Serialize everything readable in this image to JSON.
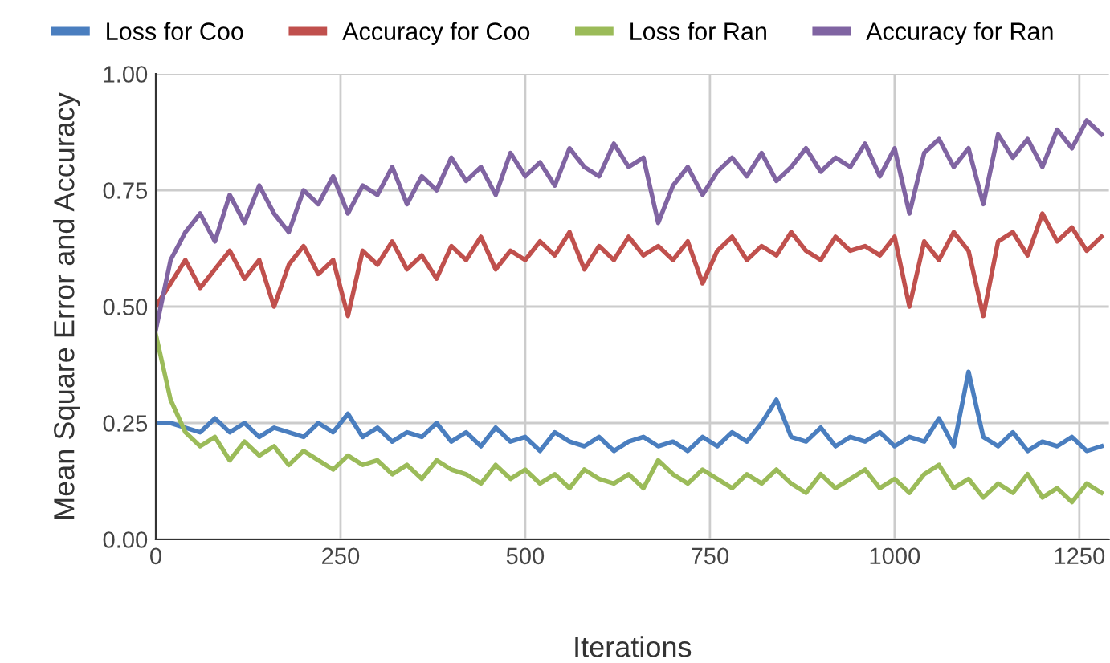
{
  "chart_data": {
    "type": "line",
    "xlabel": "Iterations",
    "ylabel": "Mean Square Error and Accuracy",
    "x": [
      0,
      20,
      40,
      60,
      80,
      100,
      120,
      140,
      160,
      180,
      200,
      220,
      240,
      260,
      280,
      300,
      320,
      340,
      360,
      380,
      400,
      420,
      440,
      460,
      480,
      500,
      520,
      540,
      560,
      580,
      600,
      620,
      640,
      660,
      680,
      700,
      720,
      740,
      760,
      780,
      800,
      820,
      840,
      860,
      880,
      900,
      920,
      940,
      960,
      980,
      1000,
      1020,
      1040,
      1060,
      1080,
      1100,
      1120,
      1140,
      1160,
      1180,
      1200,
      1220,
      1240,
      1260,
      1280
    ],
    "series": [
      {
        "name": "Loss for Coo",
        "color": "#4a7ebf",
        "values": [
          0.25,
          0.25,
          0.24,
          0.23,
          0.26,
          0.23,
          0.25,
          0.22,
          0.24,
          0.23,
          0.22,
          0.25,
          0.23,
          0.27,
          0.22,
          0.24,
          0.21,
          0.23,
          0.22,
          0.25,
          0.21,
          0.23,
          0.2,
          0.24,
          0.21,
          0.22,
          0.19,
          0.23,
          0.21,
          0.2,
          0.22,
          0.19,
          0.21,
          0.22,
          0.2,
          0.21,
          0.19,
          0.22,
          0.2,
          0.23,
          0.21,
          0.25,
          0.3,
          0.22,
          0.21,
          0.24,
          0.2,
          0.22,
          0.21,
          0.23,
          0.2,
          0.22,
          0.21,
          0.26,
          0.2,
          0.36,
          0.22,
          0.2,
          0.23,
          0.19,
          0.21,
          0.2,
          0.22,
          0.19,
          0.2
        ]
      },
      {
        "name": "Accuracy for Coo",
        "color": "#c0504d",
        "values": [
          0.5,
          0.55,
          0.6,
          0.54,
          0.58,
          0.62,
          0.56,
          0.6,
          0.5,
          0.59,
          0.63,
          0.57,
          0.6,
          0.48,
          0.62,
          0.59,
          0.64,
          0.58,
          0.61,
          0.56,
          0.63,
          0.6,
          0.65,
          0.58,
          0.62,
          0.6,
          0.64,
          0.61,
          0.66,
          0.58,
          0.63,
          0.6,
          0.65,
          0.61,
          0.63,
          0.6,
          0.64,
          0.55,
          0.62,
          0.65,
          0.6,
          0.63,
          0.61,
          0.66,
          0.62,
          0.6,
          0.65,
          0.62,
          0.63,
          0.61,
          0.65,
          0.5,
          0.64,
          0.6,
          0.66,
          0.62,
          0.48,
          0.64,
          0.66,
          0.61,
          0.7,
          0.64,
          0.67,
          0.62,
          0.65
        ]
      },
      {
        "name": "Loss for Ran",
        "color": "#9bbb59",
        "values": [
          0.44,
          0.3,
          0.23,
          0.2,
          0.22,
          0.17,
          0.21,
          0.18,
          0.2,
          0.16,
          0.19,
          0.17,
          0.15,
          0.18,
          0.16,
          0.17,
          0.14,
          0.16,
          0.13,
          0.17,
          0.15,
          0.14,
          0.12,
          0.16,
          0.13,
          0.15,
          0.12,
          0.14,
          0.11,
          0.15,
          0.13,
          0.12,
          0.14,
          0.11,
          0.17,
          0.14,
          0.12,
          0.15,
          0.13,
          0.11,
          0.14,
          0.12,
          0.15,
          0.12,
          0.1,
          0.14,
          0.11,
          0.13,
          0.15,
          0.11,
          0.13,
          0.1,
          0.14,
          0.16,
          0.11,
          0.13,
          0.09,
          0.12,
          0.1,
          0.14,
          0.09,
          0.11,
          0.08,
          0.12,
          0.1
        ]
      },
      {
        "name": "Accuracy for Ran",
        "color": "#8064a2",
        "values": [
          0.45,
          0.6,
          0.66,
          0.7,
          0.64,
          0.74,
          0.68,
          0.76,
          0.7,
          0.66,
          0.75,
          0.72,
          0.78,
          0.7,
          0.76,
          0.74,
          0.8,
          0.72,
          0.78,
          0.75,
          0.82,
          0.77,
          0.8,
          0.74,
          0.83,
          0.78,
          0.81,
          0.76,
          0.84,
          0.8,
          0.78,
          0.85,
          0.8,
          0.82,
          0.68,
          0.76,
          0.8,
          0.74,
          0.79,
          0.82,
          0.78,
          0.83,
          0.77,
          0.8,
          0.84,
          0.79,
          0.82,
          0.8,
          0.85,
          0.78,
          0.84,
          0.7,
          0.83,
          0.86,
          0.8,
          0.84,
          0.72,
          0.87,
          0.82,
          0.86,
          0.8,
          0.88,
          0.84,
          0.9,
          0.87
        ]
      }
    ],
    "xlim": [
      0,
      1290
    ],
    "ylim": [
      0,
      1
    ],
    "xticks": [
      0,
      250,
      500,
      750,
      1000,
      1250
    ],
    "yticks": [
      {
        "value": 0,
        "label": "0.00"
      },
      {
        "value": 0.25,
        "label": "0.25"
      },
      {
        "value": 0.5,
        "label": "0.50"
      },
      {
        "value": 0.75,
        "label": "0.75"
      },
      {
        "value": 1,
        "label": "1.00"
      }
    ],
    "grid": true,
    "legend": "top",
    "line_style": "solid",
    "marker": "none"
  }
}
